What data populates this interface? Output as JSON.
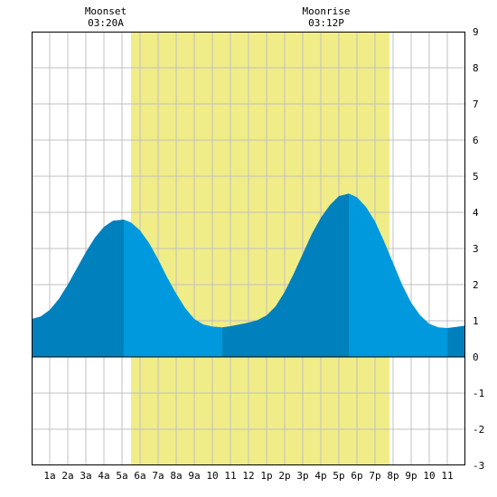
{
  "chart_data": {
    "type": "area",
    "title": "",
    "xlabel": "",
    "ylabel": "",
    "xlim": [
      0,
      24
    ],
    "ylim": [
      -3,
      9
    ],
    "y_ticks": [
      -3,
      -2,
      -1,
      0,
      1,
      2,
      3,
      4,
      5,
      6,
      7,
      8,
      9
    ],
    "x_tick_labels": [
      "1a",
      "2a",
      "3a",
      "4a",
      "5a",
      "6a",
      "7a",
      "8a",
      "9a",
      "10",
      "11",
      "12",
      "1p",
      "2p",
      "3p",
      "4p",
      "5p",
      "6p",
      "7p",
      "8p",
      "9p",
      "10",
      "11"
    ],
    "grid": true,
    "daylight": {
      "start": 5.5,
      "end": 19.8
    },
    "moon_events": [
      {
        "label": "Moonset",
        "time_label": "03:20A",
        "x": 4.1
      },
      {
        "label": "Moonrise",
        "time_label": "03:12P",
        "x": 16.3
      }
    ],
    "extremes": [
      {
        "type": "low",
        "x": 0.0,
        "y": 1.05
      },
      {
        "type": "high",
        "x": 5.1,
        "y": 3.8
      },
      {
        "type": "low",
        "x": 10.55,
        "y": 0.82
      },
      {
        "type": "high",
        "x": 17.55,
        "y": 4.52
      },
      {
        "type": "low",
        "x": 23.0,
        "y": 0.8
      }
    ],
    "series": [
      {
        "values": [
          [
            0.0,
            1.05
          ],
          [
            0.5,
            1.12
          ],
          [
            1.0,
            1.3
          ],
          [
            1.5,
            1.6
          ],
          [
            2.0,
            2.0
          ],
          [
            2.5,
            2.45
          ],
          [
            3.0,
            2.9
          ],
          [
            3.5,
            3.3
          ],
          [
            4.0,
            3.6
          ],
          [
            4.5,
            3.77
          ],
          [
            5.1,
            3.8
          ],
          [
            5.5,
            3.72
          ],
          [
            6.0,
            3.5
          ],
          [
            6.5,
            3.15
          ],
          [
            7.0,
            2.7
          ],
          [
            7.5,
            2.2
          ],
          [
            8.0,
            1.75
          ],
          [
            8.5,
            1.35
          ],
          [
            9.0,
            1.05
          ],
          [
            9.5,
            0.9
          ],
          [
            10.0,
            0.84
          ],
          [
            10.55,
            0.82
          ],
          [
            11.0,
            0.85
          ],
          [
            11.5,
            0.9
          ],
          [
            12.0,
            0.95
          ],
          [
            12.5,
            1.02
          ],
          [
            13.0,
            1.15
          ],
          [
            13.5,
            1.4
          ],
          [
            14.0,
            1.8
          ],
          [
            14.5,
            2.3
          ],
          [
            15.0,
            2.85
          ],
          [
            15.5,
            3.4
          ],
          [
            16.0,
            3.85
          ],
          [
            16.5,
            4.2
          ],
          [
            17.0,
            4.45
          ],
          [
            17.55,
            4.52
          ],
          [
            18.0,
            4.42
          ],
          [
            18.5,
            4.15
          ],
          [
            19.0,
            3.75
          ],
          [
            19.5,
            3.2
          ],
          [
            20.0,
            2.6
          ],
          [
            20.5,
            2.0
          ],
          [
            21.0,
            1.5
          ],
          [
            21.5,
            1.15
          ],
          [
            22.0,
            0.92
          ],
          [
            22.5,
            0.82
          ],
          [
            23.0,
            0.8
          ],
          [
            23.5,
            0.83
          ],
          [
            24.0,
            0.87
          ]
        ]
      }
    ],
    "colors": {
      "rising": "#0080bc",
      "falling": "#0099dd",
      "daylight": "#f0ec88",
      "grid": "#c0c0c0",
      "frame": "#000000",
      "background": "#ffffff"
    }
  }
}
